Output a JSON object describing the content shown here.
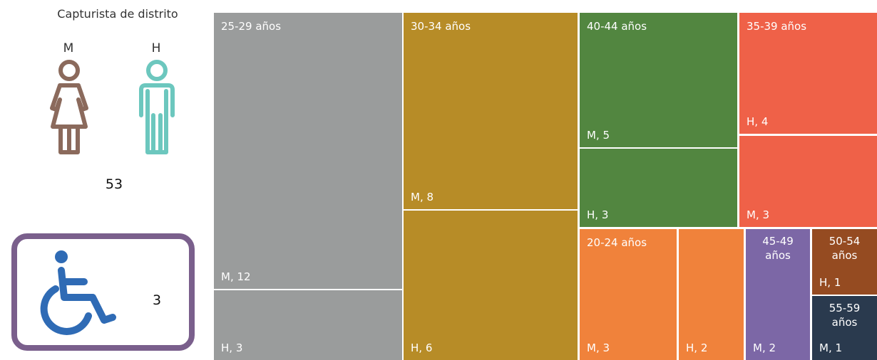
{
  "panel": {
    "title": "Capturista de distrito",
    "female_label": "M",
    "male_label": "H",
    "total": "53",
    "disability_count": "3"
  },
  "icons": {
    "female": "woman-icon",
    "male": "man-icon",
    "disability": "wheelchair-icon"
  },
  "colors": {
    "female_icon": "#8b6a5c",
    "male_icon": "#6cc7be",
    "disability_border": "#7a5f8c",
    "disability_icon": "#2f6bb5"
  },
  "chart_data": {
    "type": "treemap",
    "groups": [
      {
        "label": "25-29 años",
        "color": "#9a9c9c",
        "cells": [
          {
            "label": "M, 12",
            "value": 12
          },
          {
            "label": "H, 3",
            "value": 3
          }
        ]
      },
      {
        "label": "30-34 años",
        "color": "#b78c27",
        "cells": [
          {
            "label": "M, 8",
            "value": 8
          },
          {
            "label": "H, 6",
            "value": 6
          }
        ]
      },
      {
        "label": "40-44 años",
        "color": "#528640",
        "cells": [
          {
            "label": "M, 5",
            "value": 5
          },
          {
            "label": "H, 3",
            "value": 3
          }
        ]
      },
      {
        "label": "35-39 años",
        "color": "#ef6148",
        "cells": [
          {
            "label": "H, 4",
            "value": 4
          },
          {
            "label": "M, 3",
            "value": 3
          }
        ]
      },
      {
        "label": "20-24 años",
        "color": "#f0823b",
        "cells": [
          {
            "label": "M, 3",
            "value": 3
          },
          {
            "label": "H, 2",
            "value": 2
          }
        ]
      },
      {
        "label": "45-49 años",
        "color": "#7c67a6",
        "cells": [
          {
            "label": "M, 2",
            "value": 2
          }
        ]
      },
      {
        "label": "50-54 años",
        "color": "#954b21",
        "cells": [
          {
            "label": "H, 1",
            "value": 1
          }
        ]
      },
      {
        "label": "55-59 años",
        "color": "#2a3a4e",
        "cells": [
          {
            "label": "M, 1",
            "value": 1
          }
        ]
      }
    ]
  }
}
